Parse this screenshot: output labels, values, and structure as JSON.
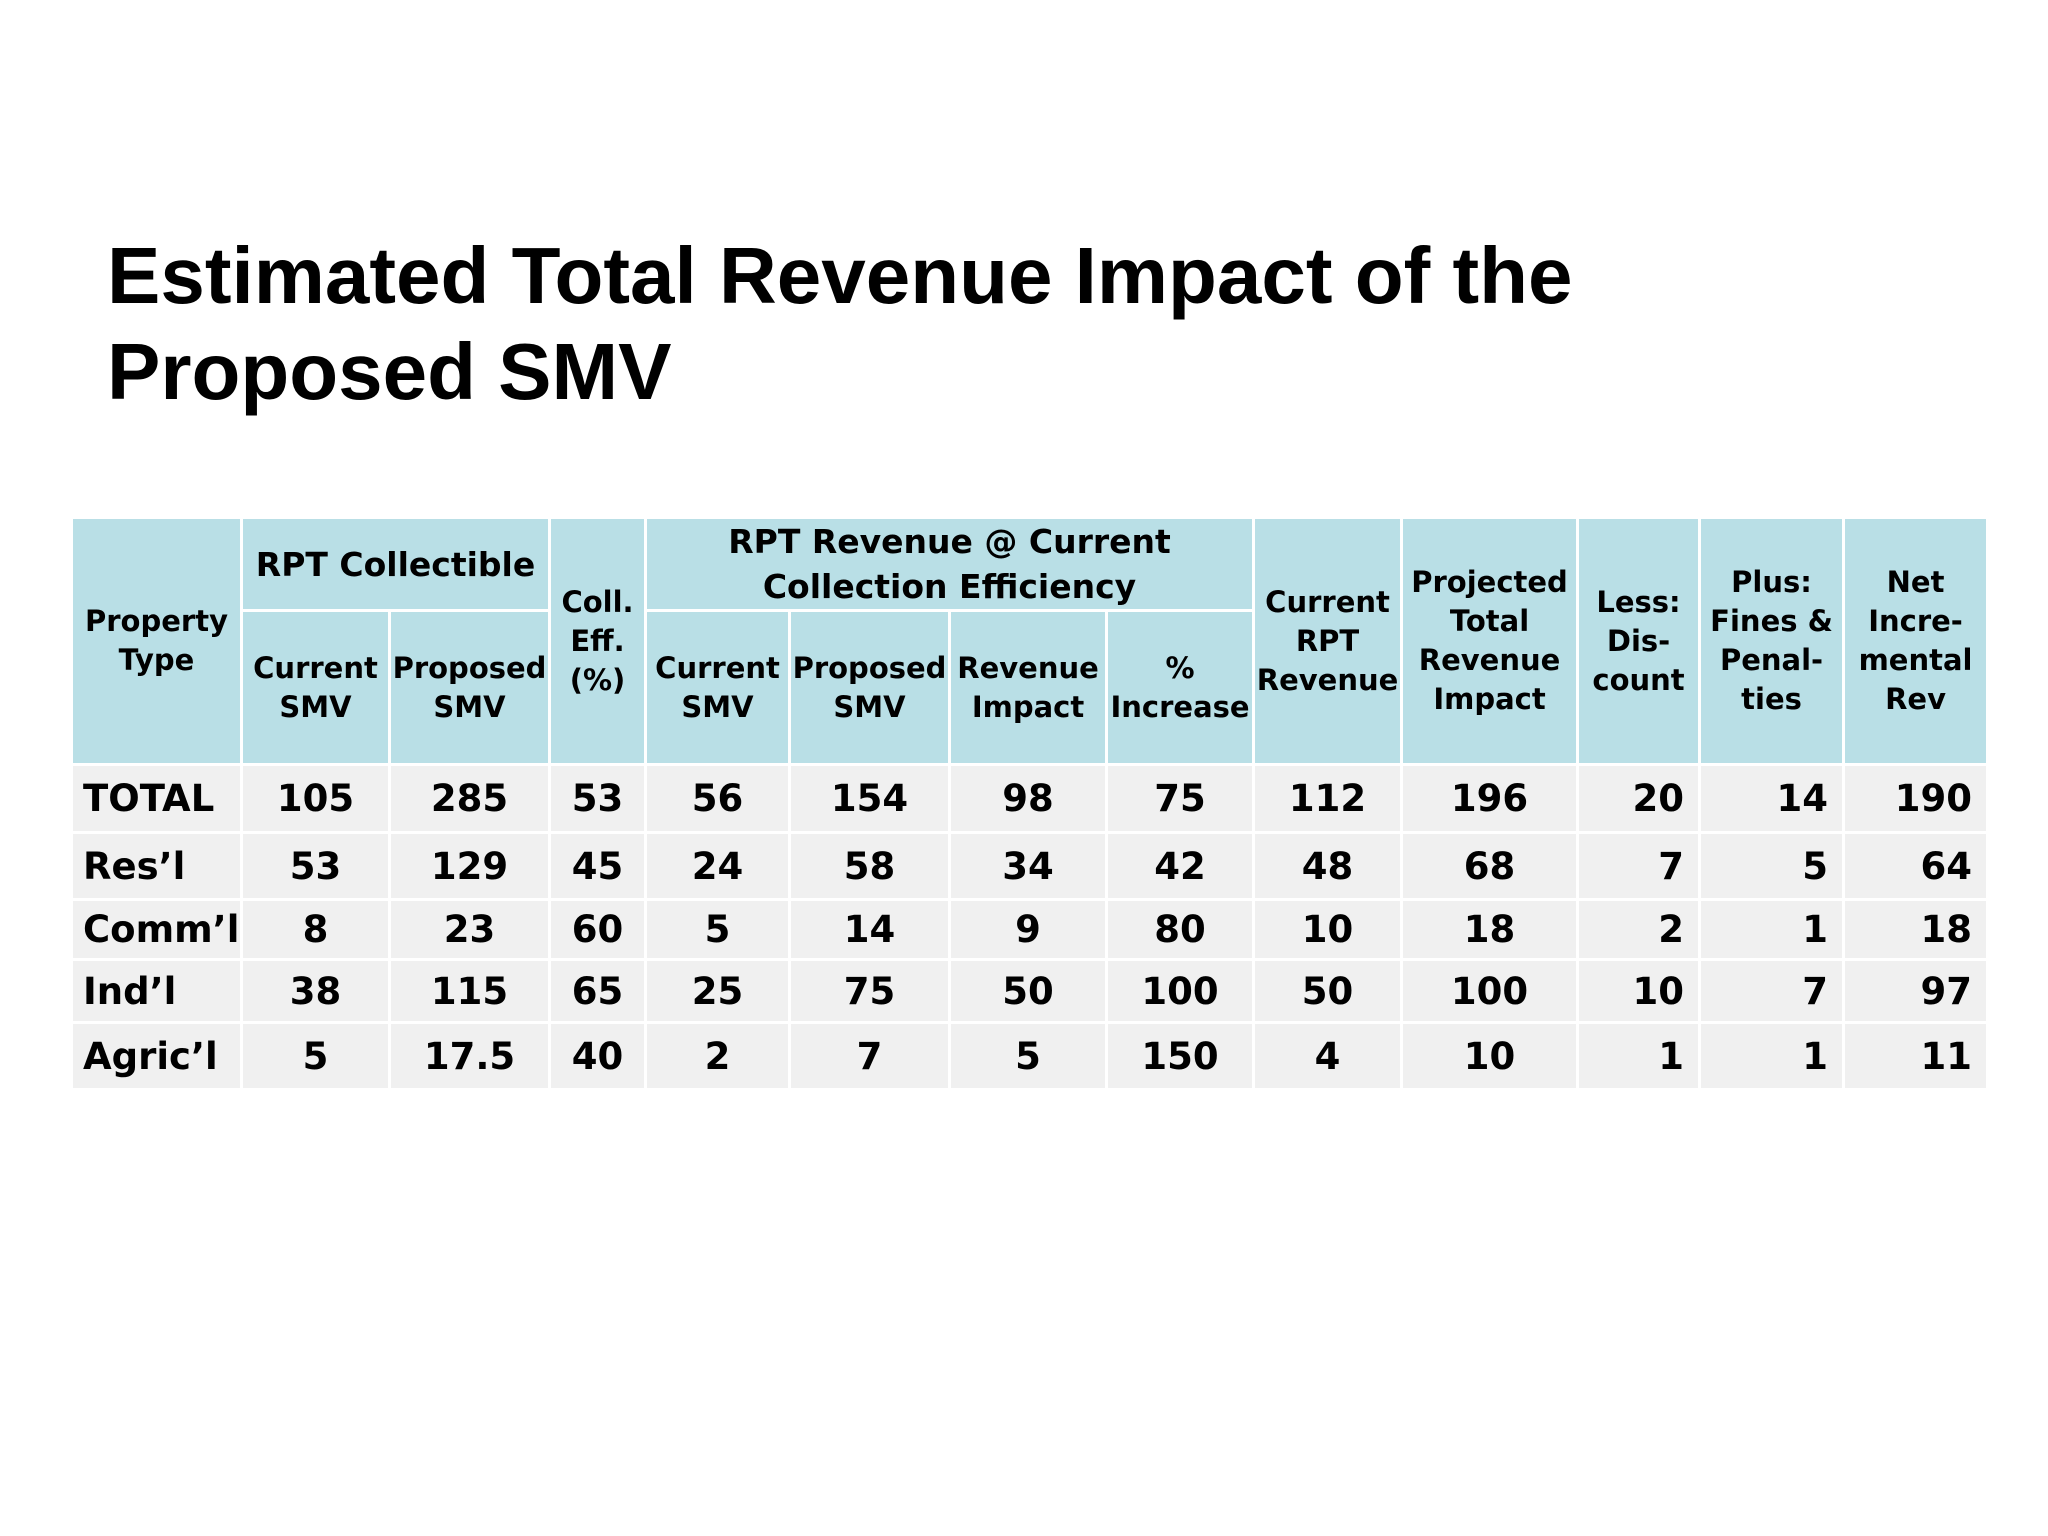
{
  "title": "Estimated Total Revenue Impact of the\nProposed SMV",
  "table": {
    "headers": {
      "property_type": "Property Type",
      "rpt_collectible": "RPT Collectible",
      "coll_eff": "Coll. Eff. (%)",
      "rpt_revenue_group": "RPT Revenue  @ Current Collection Efficiency",
      "current_smv": "Current SMV",
      "proposed_smv": "Proposed SMV",
      "rev_current_smv": "Current SMV",
      "rev_proposed_smv": "Proposed SMV",
      "revenue_impact": "Revenue Impact",
      "pct_increase": "% Increase",
      "current_rpt_revenue": "Current RPT Revenue",
      "projected_total": "Projected Total Revenue Impact",
      "less_discount": "Less: Dis-count",
      "plus_fines": "Plus: Fines & Penal-ties",
      "net_incremental": "Net Incre-mental Rev"
    },
    "rows": [
      {
        "type": "TOTAL",
        "coll_current": "105",
        "coll_proposed": "285",
        "eff": "53",
        "rev_current": "56",
        "rev_proposed": "154",
        "impact": "98",
        "pct": "75",
        "current_rpt": "112",
        "projected": "196",
        "discount": "20",
        "fines": "14",
        "net": "190"
      },
      {
        "type": "Res’l",
        "coll_current": "53",
        "coll_proposed": "129",
        "eff": "45",
        "rev_current": "24",
        "rev_proposed": "58",
        "impact": "34",
        "pct": "42",
        "current_rpt": "48",
        "projected": "68",
        "discount": "7",
        "fines": "5",
        "net": "64"
      },
      {
        "type": "Comm’l",
        "coll_current": "8",
        "coll_proposed": "23",
        "eff": "60",
        "rev_current": "5",
        "rev_proposed": "14",
        "impact": "9",
        "pct": "80",
        "current_rpt": "10",
        "projected": "18",
        "discount": "2",
        "fines": "1",
        "net": "18"
      },
      {
        "type": "Ind’l",
        "coll_current": "38",
        "coll_proposed": "115",
        "eff": "65",
        "rev_current": "25",
        "rev_proposed": "75",
        "impact": "50",
        "pct": "100",
        "current_rpt": "50",
        "projected": "100",
        "discount": "10",
        "fines": "7",
        "net": "97"
      },
      {
        "type": "Agric’l",
        "coll_current": "5",
        "coll_proposed": "17.5",
        "eff": "40",
        "rev_current": "2",
        "rev_proposed": "7",
        "impact": "5",
        "pct": "150",
        "current_rpt": "4",
        "projected": "10",
        "discount": "1",
        "fines": "1",
        "net": "11"
      }
    ]
  },
  "colors": {
    "header_bg": "#b9dfe6",
    "row_bg": "#f0f0f0"
  }
}
